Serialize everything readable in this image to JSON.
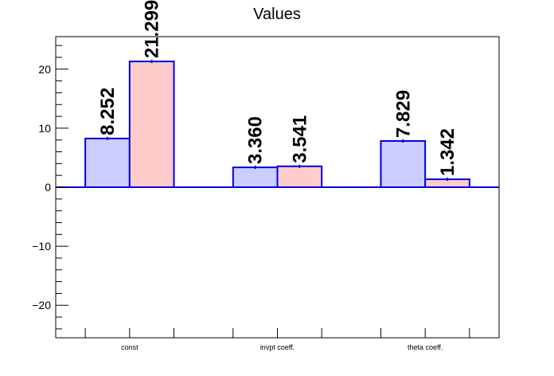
{
  "chart_data": {
    "type": "bar",
    "title": "Values",
    "xlabel": "",
    "ylabel": "",
    "categories": [
      "const",
      "invpt coeff.",
      "theta coeff."
    ],
    "ylim": [
      -25.5,
      25.5
    ],
    "yticks": [
      -20,
      -10,
      0,
      10,
      20
    ],
    "grid": false,
    "legend": "none",
    "series": [
      {
        "values": [
          8.252,
          3.36,
          7.829
        ],
        "labels": [
          "8.252",
          "3.360",
          "7.829"
        ],
        "fill": "#ccccff",
        "stroke": "#0000dd"
      },
      {
        "values": [
          21.299,
          3.541,
          1.342
        ],
        "labels": [
          "21.299",
          "3.541",
          "1.342"
        ],
        "fill": "#ffcccc",
        "stroke": "#0000dd"
      }
    ]
  }
}
